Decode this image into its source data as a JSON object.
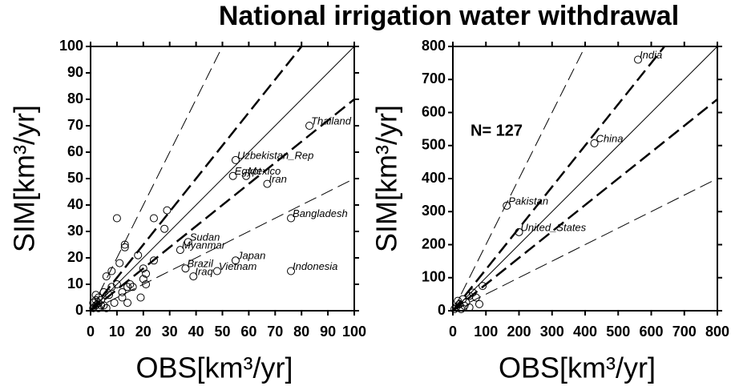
{
  "title": "National irrigation water withdrawal",
  "chart_data": [
    {
      "type": "scatter",
      "x_label": "OBS[km³/yr]",
      "y_label": "SIM[km³/yr]",
      "xlim": [
        0,
        100
      ],
      "ylim": [
        0,
        100
      ],
      "xticks": [
        0,
        10,
        20,
        30,
        40,
        50,
        60,
        70,
        80,
        90,
        100
      ],
      "yticks": [
        0,
        10,
        20,
        30,
        40,
        50,
        60,
        70,
        80,
        90,
        100
      ],
      "reference_lines": [
        {
          "slope": 1,
          "style": "solid"
        },
        {
          "slope": 1.25,
          "style": "thick-dash"
        },
        {
          "slope": 0.8,
          "style": "thick-dash"
        },
        {
          "slope": 2,
          "style": "thin-dash"
        },
        {
          "slope": 0.5,
          "style": "thin-dash"
        }
      ],
      "x": [
        83,
        55,
        54,
        59,
        67,
        76,
        37,
        34,
        55,
        36,
        48,
        39,
        76,
        10,
        24,
        29,
        13,
        13,
        28,
        18,
        24,
        8,
        11,
        20,
        21,
        20,
        15,
        14,
        16,
        21,
        19,
        10,
        12,
        14,
        9,
        12,
        8,
        6,
        5,
        7,
        3,
        2,
        4,
        3,
        2,
        1,
        1,
        5,
        6,
        3,
        2,
        4
      ],
      "values": [
        70,
        57,
        51,
        51,
        48,
        35,
        26,
        23,
        19,
        16,
        15,
        13,
        15,
        35,
        35,
        38,
        25,
        24,
        31,
        21,
        19,
        15,
        18,
        16,
        14,
        12,
        10,
        9,
        9,
        10,
        5,
        10,
        5,
        3,
        3,
        7,
        9,
        13,
        7,
        6,
        5,
        6,
        4,
        3,
        2,
        1,
        3,
        2,
        1,
        1,
        4,
        2
      ],
      "point_labels": [
        "Thailand",
        "Uzbekistan_Rep",
        "Egypt",
        "Mexico",
        "Iran",
        "Bangladesh",
        "Sudan",
        "Myanmar",
        "Japan",
        "Brazil",
        "Vietnam",
        "Iraq",
        "Indonesia",
        null,
        null,
        null,
        null,
        null,
        null,
        null,
        null,
        null,
        null,
        null,
        null,
        null,
        null,
        null,
        null,
        null,
        null,
        null,
        null,
        null,
        null,
        null,
        null,
        null,
        null,
        null,
        null,
        null,
        null,
        null,
        null,
        null,
        null,
        null,
        null,
        null,
        null,
        null
      ]
    },
    {
      "type": "scatter",
      "x_label": "OBS[km³/yr]",
      "y_label": "SIM[km³/yr]",
      "annotation": "N= 127",
      "xlim": [
        0,
        800
      ],
      "ylim": [
        0,
        800
      ],
      "xticks": [
        0,
        100,
        200,
        300,
        400,
        500,
        600,
        700,
        800
      ],
      "yticks": [
        0,
        100,
        200,
        300,
        400,
        500,
        600,
        700,
        800
      ],
      "reference_lines": [
        {
          "slope": 1,
          "style": "solid"
        },
        {
          "slope": 1.25,
          "style": "thick-dash"
        },
        {
          "slope": 0.8,
          "style": "thick-dash"
        },
        {
          "slope": 2,
          "style": "thin-dash"
        },
        {
          "slope": 0.5,
          "style": "thin-dash"
        }
      ],
      "x": [
        560,
        428,
        163,
        200,
        90,
        60,
        50,
        30,
        80,
        20,
        40,
        10,
        15,
        70,
        25,
        5,
        50,
        35
      ],
      "values": [
        760,
        507,
        318,
        238,
        75,
        55,
        45,
        35,
        20,
        20,
        25,
        10,
        30,
        40,
        5,
        5,
        10,
        15
      ],
      "point_labels": [
        "India",
        "China",
        "Pakistan",
        "United_States",
        null,
        null,
        null,
        null,
        null,
        null,
        null,
        null,
        null,
        null,
        null,
        null,
        null,
        null
      ]
    }
  ]
}
